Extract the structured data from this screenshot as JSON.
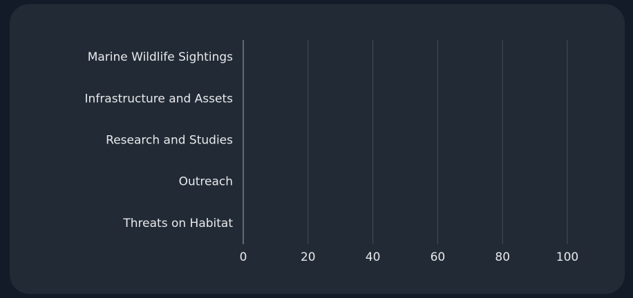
{
  "chart_data": {
    "type": "bar",
    "orientation": "horizontal",
    "categories": [
      "Marine Wildlife Sightings",
      "Infrastructure and Assets",
      "Research and Studies",
      "Outreach",
      "Threats on Habitat"
    ],
    "values": [
      0,
      0,
      0,
      0,
      0
    ],
    "color": "#4f8fe6",
    "xlim": [
      0,
      100
    ],
    "xticks": [
      0,
      20,
      40,
      60,
      80,
      100
    ],
    "grid": true
  }
}
